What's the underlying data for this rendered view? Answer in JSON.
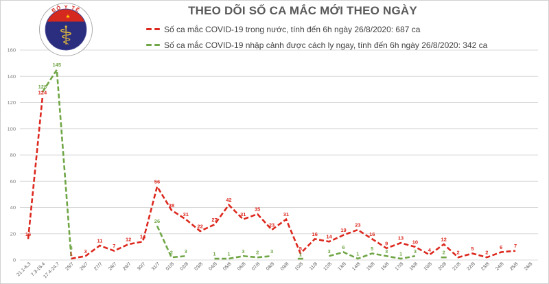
{
  "title": "THEO DÕI SỐ CA MẮC MỚI THEO NGÀY",
  "logo": {
    "top_text": "BỘ Y TẾ",
    "bottom_text": "MINISTRY OF HEALTH",
    "star": "★",
    "staff_icon": "⚕",
    "colors": {
      "ring": "#a8a8a8",
      "navy": "#2b2d7e",
      "red_band": "#d5281e",
      "star": "#ffd400",
      "staff": "#dcb53c"
    }
  },
  "legend": {
    "domestic": {
      "label": "Số ca mắc COVID-19 trong nước, tính đến 6h ngày 26/8/2020: 687 ca",
      "color": "#dc281e"
    },
    "imported": {
      "label": "Số ca mắc COVID-19 nhập cảnh được cách ly ngay, tính đến 6h ngày 26/8/2020: 342 ca",
      "color": "#70a646"
    }
  },
  "chart_data": {
    "type": "line",
    "title": "THEO DÕI SỐ CA MẮC MỚI THEO NGÀY",
    "line_style": "dashed",
    "grid": true,
    "legend_position": "top",
    "ylim": [
      0,
      160
    ],
    "ytick_step": 20,
    "ytick_labels": [
      "0",
      "20",
      "40",
      "60",
      "80",
      "100",
      "120",
      "140",
      "160"
    ],
    "categories": [
      "21.1-6.3",
      "7.3-16.4",
      "17.4-24.7",
      "25/7",
      "26/7",
      "27/7",
      "28/7",
      "29/7",
      "30/7",
      "31/7",
      "01/8",
      "02/8",
      "03/8",
      "04/8",
      "05/8",
      "06/8",
      "07/8",
      "08/8",
      "09/8",
      "10/8",
      "11/8",
      "12/8",
      "13/8",
      "14/8",
      "15/8",
      "16/8",
      "17/8",
      "18/8",
      "19/8",
      "20/8",
      "21/8",
      "22/8",
      "23/8",
      "24/8",
      "25/8",
      "26/8"
    ],
    "series": [
      {
        "name": "Số ca mắc COVID-19 trong nước",
        "color": "#dc281e",
        "total": 687,
        "values": [
          16,
          124,
          null,
          1,
          3,
          11,
          7,
          12,
          14,
          56,
          38,
          31,
          22,
          27,
          42,
          31,
          35,
          23,
          31,
          5,
          16,
          14,
          19,
          23,
          16,
          9,
          13,
          10,
          4,
          12,
          2,
          5,
          2,
          6,
          7,
          null
        ]
      },
      {
        "name": "Số ca mắc COVID-19 nhập cảnh được cách ly ngay",
        "color": "#70a646",
        "total": 342,
        "values": [
          null,
          128,
          145,
          3,
          null,
          null,
          null,
          null,
          null,
          26,
          2,
          3,
          null,
          1,
          1,
          3,
          2,
          3,
          null,
          1,
          null,
          3,
          6,
          1,
          5,
          3,
          1,
          3,
          null,
          2,
          null,
          null,
          null,
          null,
          null,
          null
        ]
      }
    ]
  },
  "axis_colors": {
    "grid": "#d9d9d9",
    "ytick_text": "#7f7f7f",
    "xtick_text": "#595959"
  }
}
